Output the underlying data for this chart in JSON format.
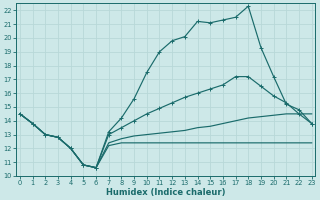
{
  "xlabel": "Humidex (Indice chaleur)",
  "xlim": [
    -0.3,
    23.3
  ],
  "ylim": [
    10,
    22.5
  ],
  "xticks": [
    0,
    1,
    2,
    3,
    4,
    5,
    6,
    7,
    8,
    9,
    10,
    11,
    12,
    13,
    14,
    15,
    16,
    17,
    18,
    19,
    20,
    21,
    22,
    23
  ],
  "yticks": [
    10,
    11,
    12,
    13,
    14,
    15,
    16,
    17,
    18,
    19,
    20,
    21,
    22
  ],
  "bg_color": "#cde8e8",
  "line_color": "#1a6b6b",
  "grid_color": "#b8d8d8",
  "line1_x": [
    0,
    1,
    2,
    3,
    4,
    5,
    6,
    7,
    8,
    9,
    10,
    11,
    12,
    13,
    14,
    15,
    16,
    17,
    18,
    19,
    20,
    21,
    22,
    23
  ],
  "line1_y": [
    14.5,
    13.8,
    13.0,
    12.8,
    12.0,
    10.8,
    10.6,
    13.2,
    14.2,
    15.6,
    17.5,
    19.0,
    19.8,
    20.1,
    21.2,
    21.1,
    21.3,
    21.5,
    22.3,
    19.3,
    17.2,
    15.2,
    14.8,
    13.8
  ],
  "line2_x": [
    0,
    1,
    2,
    3,
    4,
    5,
    6,
    7,
    8,
    9,
    10,
    11,
    12,
    13,
    14,
    15,
    16,
    17,
    18,
    19,
    20,
    21,
    22,
    23
  ],
  "line2_y": [
    14.5,
    13.8,
    13.0,
    12.8,
    12.0,
    10.8,
    10.6,
    13.0,
    13.5,
    14.0,
    14.5,
    14.9,
    15.3,
    15.7,
    16.0,
    16.3,
    16.6,
    17.2,
    17.2,
    16.5,
    15.8,
    15.3,
    14.5,
    13.8
  ],
  "line3_x": [
    0,
    1,
    2,
    3,
    4,
    5,
    6,
    7,
    8,
    9,
    10,
    11,
    12,
    13,
    14,
    15,
    16,
    17,
    18,
    19,
    20,
    21,
    22,
    23
  ],
  "line3_y": [
    14.5,
    13.8,
    13.0,
    12.8,
    12.0,
    10.8,
    10.6,
    12.4,
    12.7,
    12.9,
    13.0,
    13.1,
    13.2,
    13.3,
    13.5,
    13.6,
    13.8,
    14.0,
    14.2,
    14.3,
    14.4,
    14.5,
    14.5,
    14.5
  ],
  "line4_x": [
    0,
    1,
    2,
    3,
    4,
    5,
    6,
    7,
    8,
    9,
    10,
    11,
    12,
    13,
    14,
    15,
    16,
    17,
    18,
    19,
    20,
    21,
    22,
    23
  ],
  "line4_y": [
    14.5,
    13.8,
    13.0,
    12.8,
    12.0,
    10.8,
    10.6,
    12.2,
    12.4,
    12.4,
    12.4,
    12.4,
    12.4,
    12.4,
    12.4,
    12.4,
    12.4,
    12.4,
    12.4,
    12.4,
    12.4,
    12.4,
    12.4,
    12.4
  ]
}
